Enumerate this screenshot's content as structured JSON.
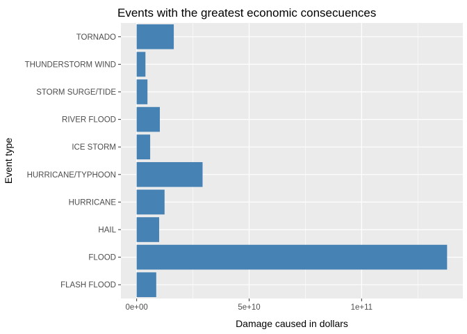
{
  "chart_data": {
    "type": "bar",
    "orientation": "horizontal",
    "title": "Events with the greatest economic consecuences",
    "xlabel": "Damage caused in dollars",
    "ylabel": "Event type",
    "categories": [
      "FLASH FLOOD",
      "FLOOD",
      "HAIL",
      "HURRICANE",
      "HURRICANE/TYPHOON",
      "ICE STORM",
      "RIVER FLOOD",
      "STORM SURGE/TIDE",
      "THUNDERSTORM WIND",
      "TORNADO"
    ],
    "values": [
      8700000000.0,
      138000000000.0,
      10000000000.0,
      12400000000.0,
      29300000000.0,
      6000000000.0,
      10300000000.0,
      4800000000.0,
      3900000000.0,
      16500000000.0
    ],
    "xlim": [
      -7000000000.0,
      145000000000.0
    ],
    "xticks": [
      0,
      50000000000.0,
      100000000000.0
    ],
    "xtick_labels": [
      "0e+00",
      "5e+10",
      "1e+11"
    ],
    "xminor": [
      25000000000.0,
      75000000000.0,
      125000000000.0
    ],
    "bar_color": "#4682B4",
    "panel_color": "#EBEBEB",
    "grid_color": "#FFFFFF",
    "grid": true
  }
}
